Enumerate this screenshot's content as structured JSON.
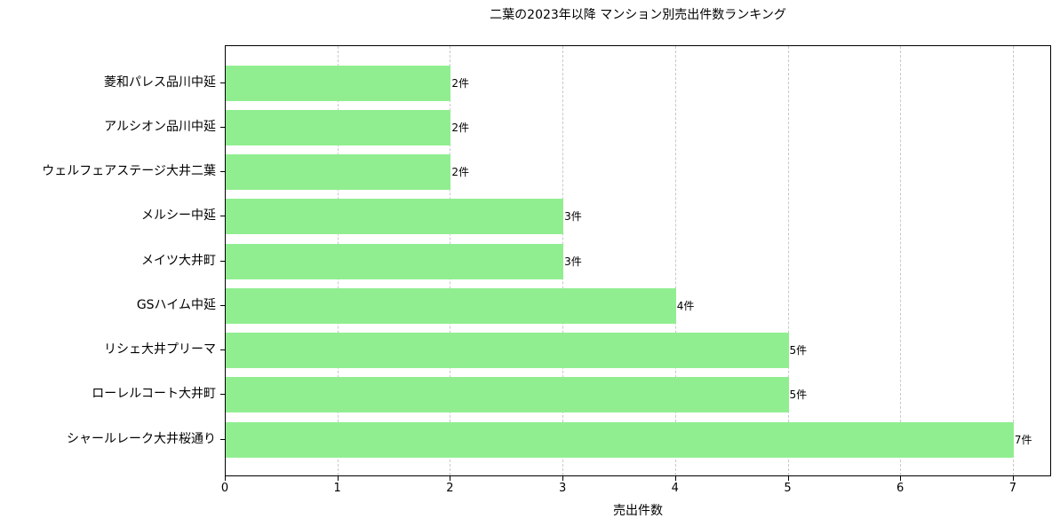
{
  "chart_data": {
    "type": "bar",
    "orientation": "horizontal",
    "title": "二葉の2023年以降 マンション別売出件数ランキング",
    "xlabel": "売出件数",
    "ylabel": "",
    "xlim": [
      0,
      7.35
    ],
    "xticks": [
      "0",
      "1",
      "2",
      "3",
      "4",
      "5",
      "6",
      "7"
    ],
    "grid": {
      "x": true,
      "y": false,
      "style": "dashed"
    },
    "bar_color": "#90ee90",
    "categories": [
      "菱和パレス品川中延",
      "アルシオン品川中延",
      "ウェルフェアステージ大井二葉",
      "メルシー中延",
      "メイツ大井町",
      "GSハイム中延",
      "リシェ大井プリーマ",
      "ローレルコート大井町",
      "シャールレーク大井桜通り"
    ],
    "values": [
      2,
      2,
      2,
      3,
      3,
      4,
      5,
      5,
      7
    ],
    "data_labels": [
      "2件",
      "2件",
      "2件",
      "3件",
      "3件",
      "4件",
      "5件",
      "5件",
      "7件"
    ]
  }
}
